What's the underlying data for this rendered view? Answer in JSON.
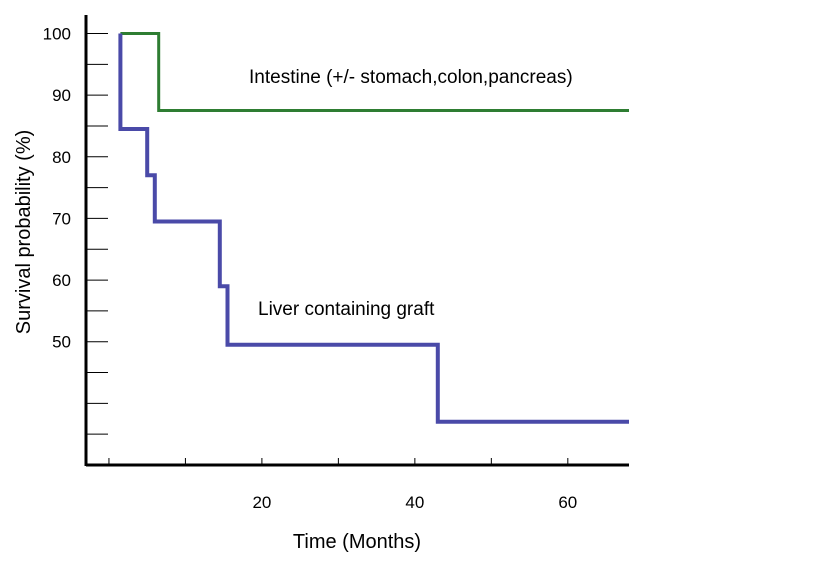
{
  "chart_data": {
    "type": "line",
    "step": true,
    "xlabel": "Time (Months)",
    "ylabel": "Survival probability (%)",
    "xlim": [
      -3,
      68
    ],
    "ylim": [
      30,
      103
    ],
    "x_ticks": [
      20,
      40,
      60
    ],
    "y_ticks": [
      50,
      60,
      70,
      80,
      90,
      100
    ],
    "grid": false,
    "colors": {
      "axis": "#000000"
    },
    "series": [
      {
        "name": "Intestine (+/- stomach,colon,pancreas)",
        "color": "#2e7d32",
        "x": [
          1.5,
          6.5,
          6.5,
          68
        ],
        "y": [
          100,
          100,
          87.5,
          87.5
        ]
      },
      {
        "name": "Liver containing graft",
        "color": "#4a4aa8",
        "x": [
          1.5,
          1.5,
          5,
          5,
          6,
          6,
          14.5,
          14.5,
          15.5,
          15.5,
          43,
          43,
          68
        ],
        "y": [
          100,
          84.5,
          84.5,
          77,
          77,
          69.5,
          69.5,
          59,
          59,
          49.5,
          49.5,
          37,
          37
        ]
      }
    ]
  }
}
